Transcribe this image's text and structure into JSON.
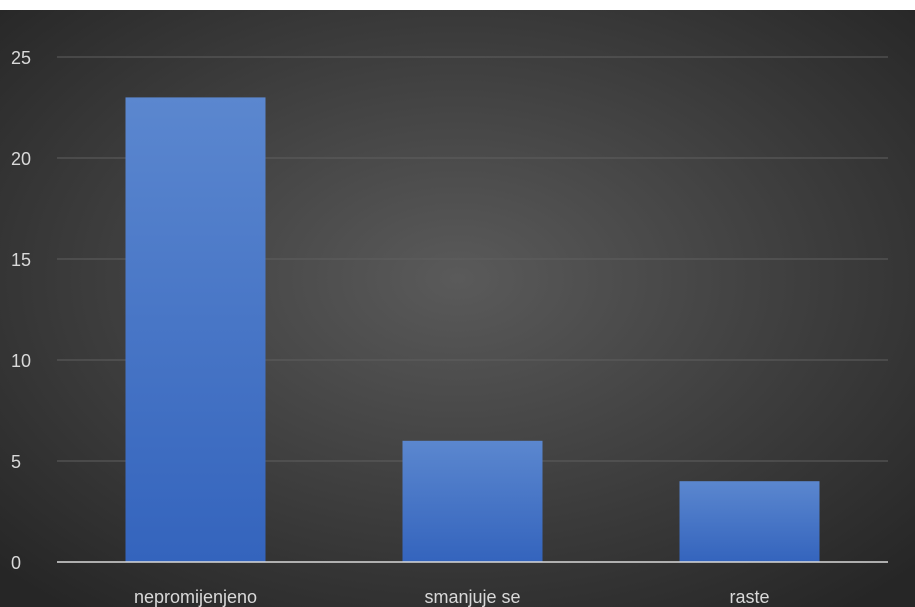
{
  "chart_data": {
    "type": "bar",
    "categories": [
      "nepromijenjeno",
      "smanjuje se",
      "raste"
    ],
    "values": [
      23,
      6,
      4
    ],
    "ylim": [
      0,
      25
    ],
    "yticks": [
      "0",
      "5",
      "10",
      "15",
      "20",
      "25"
    ],
    "grid": true,
    "legend": "none",
    "colors": {
      "bar_top": "#5b87cf",
      "bar_bottom": "#3464bd",
      "background_center": "#595959",
      "background_edge": "#262626",
      "grid": "#5f5f5f",
      "axis": "#d9d9d9",
      "text": "#d9d9d9"
    }
  }
}
